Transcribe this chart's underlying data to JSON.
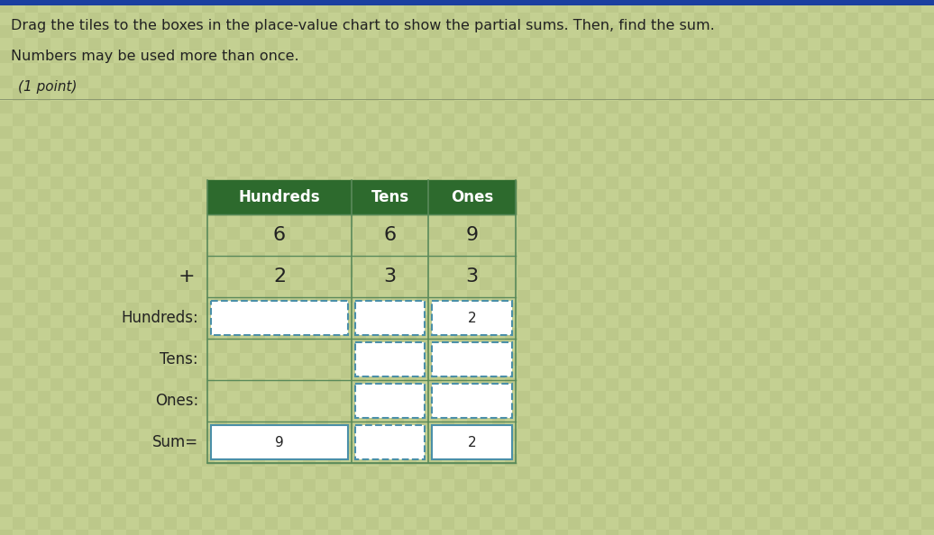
{
  "title_line1": "Drag the tiles to the boxes in the place-value chart to show the partial sums. Then, find the sum.",
  "title_line2": "Numbers may be used more than once.",
  "title_line3": "(1 point)",
  "header": [
    "Hundreds",
    "Tens",
    "Ones"
  ],
  "row1": [
    "6",
    "6",
    "9"
  ],
  "row2": [
    "2",
    "3",
    "3"
  ],
  "row_labels": [
    "Hundreds:",
    "Tens:",
    "Ones:",
    "Sum="
  ],
  "hundreds_boxes": [
    "",
    "",
    "2"
  ],
  "tens_boxes": [
    "",
    ""
  ],
  "ones_boxes": [
    "",
    ""
  ],
  "sum_boxes": [
    "9",
    "",
    "2"
  ],
  "header_bg": "#2d6a2d",
  "header_text": "#ffffff",
  "cell_text": "#222222",
  "box_border": "#4a8fa8",
  "grid_line": "#5a8a5a",
  "background": "#b8c890",
  "text_color": "#222222",
  "label_color": "#222222",
  "top_bar_color": "#1a3fa0",
  "grid_bg_light": "#c0cc88",
  "grid_bg_dark": "#b0bc80"
}
